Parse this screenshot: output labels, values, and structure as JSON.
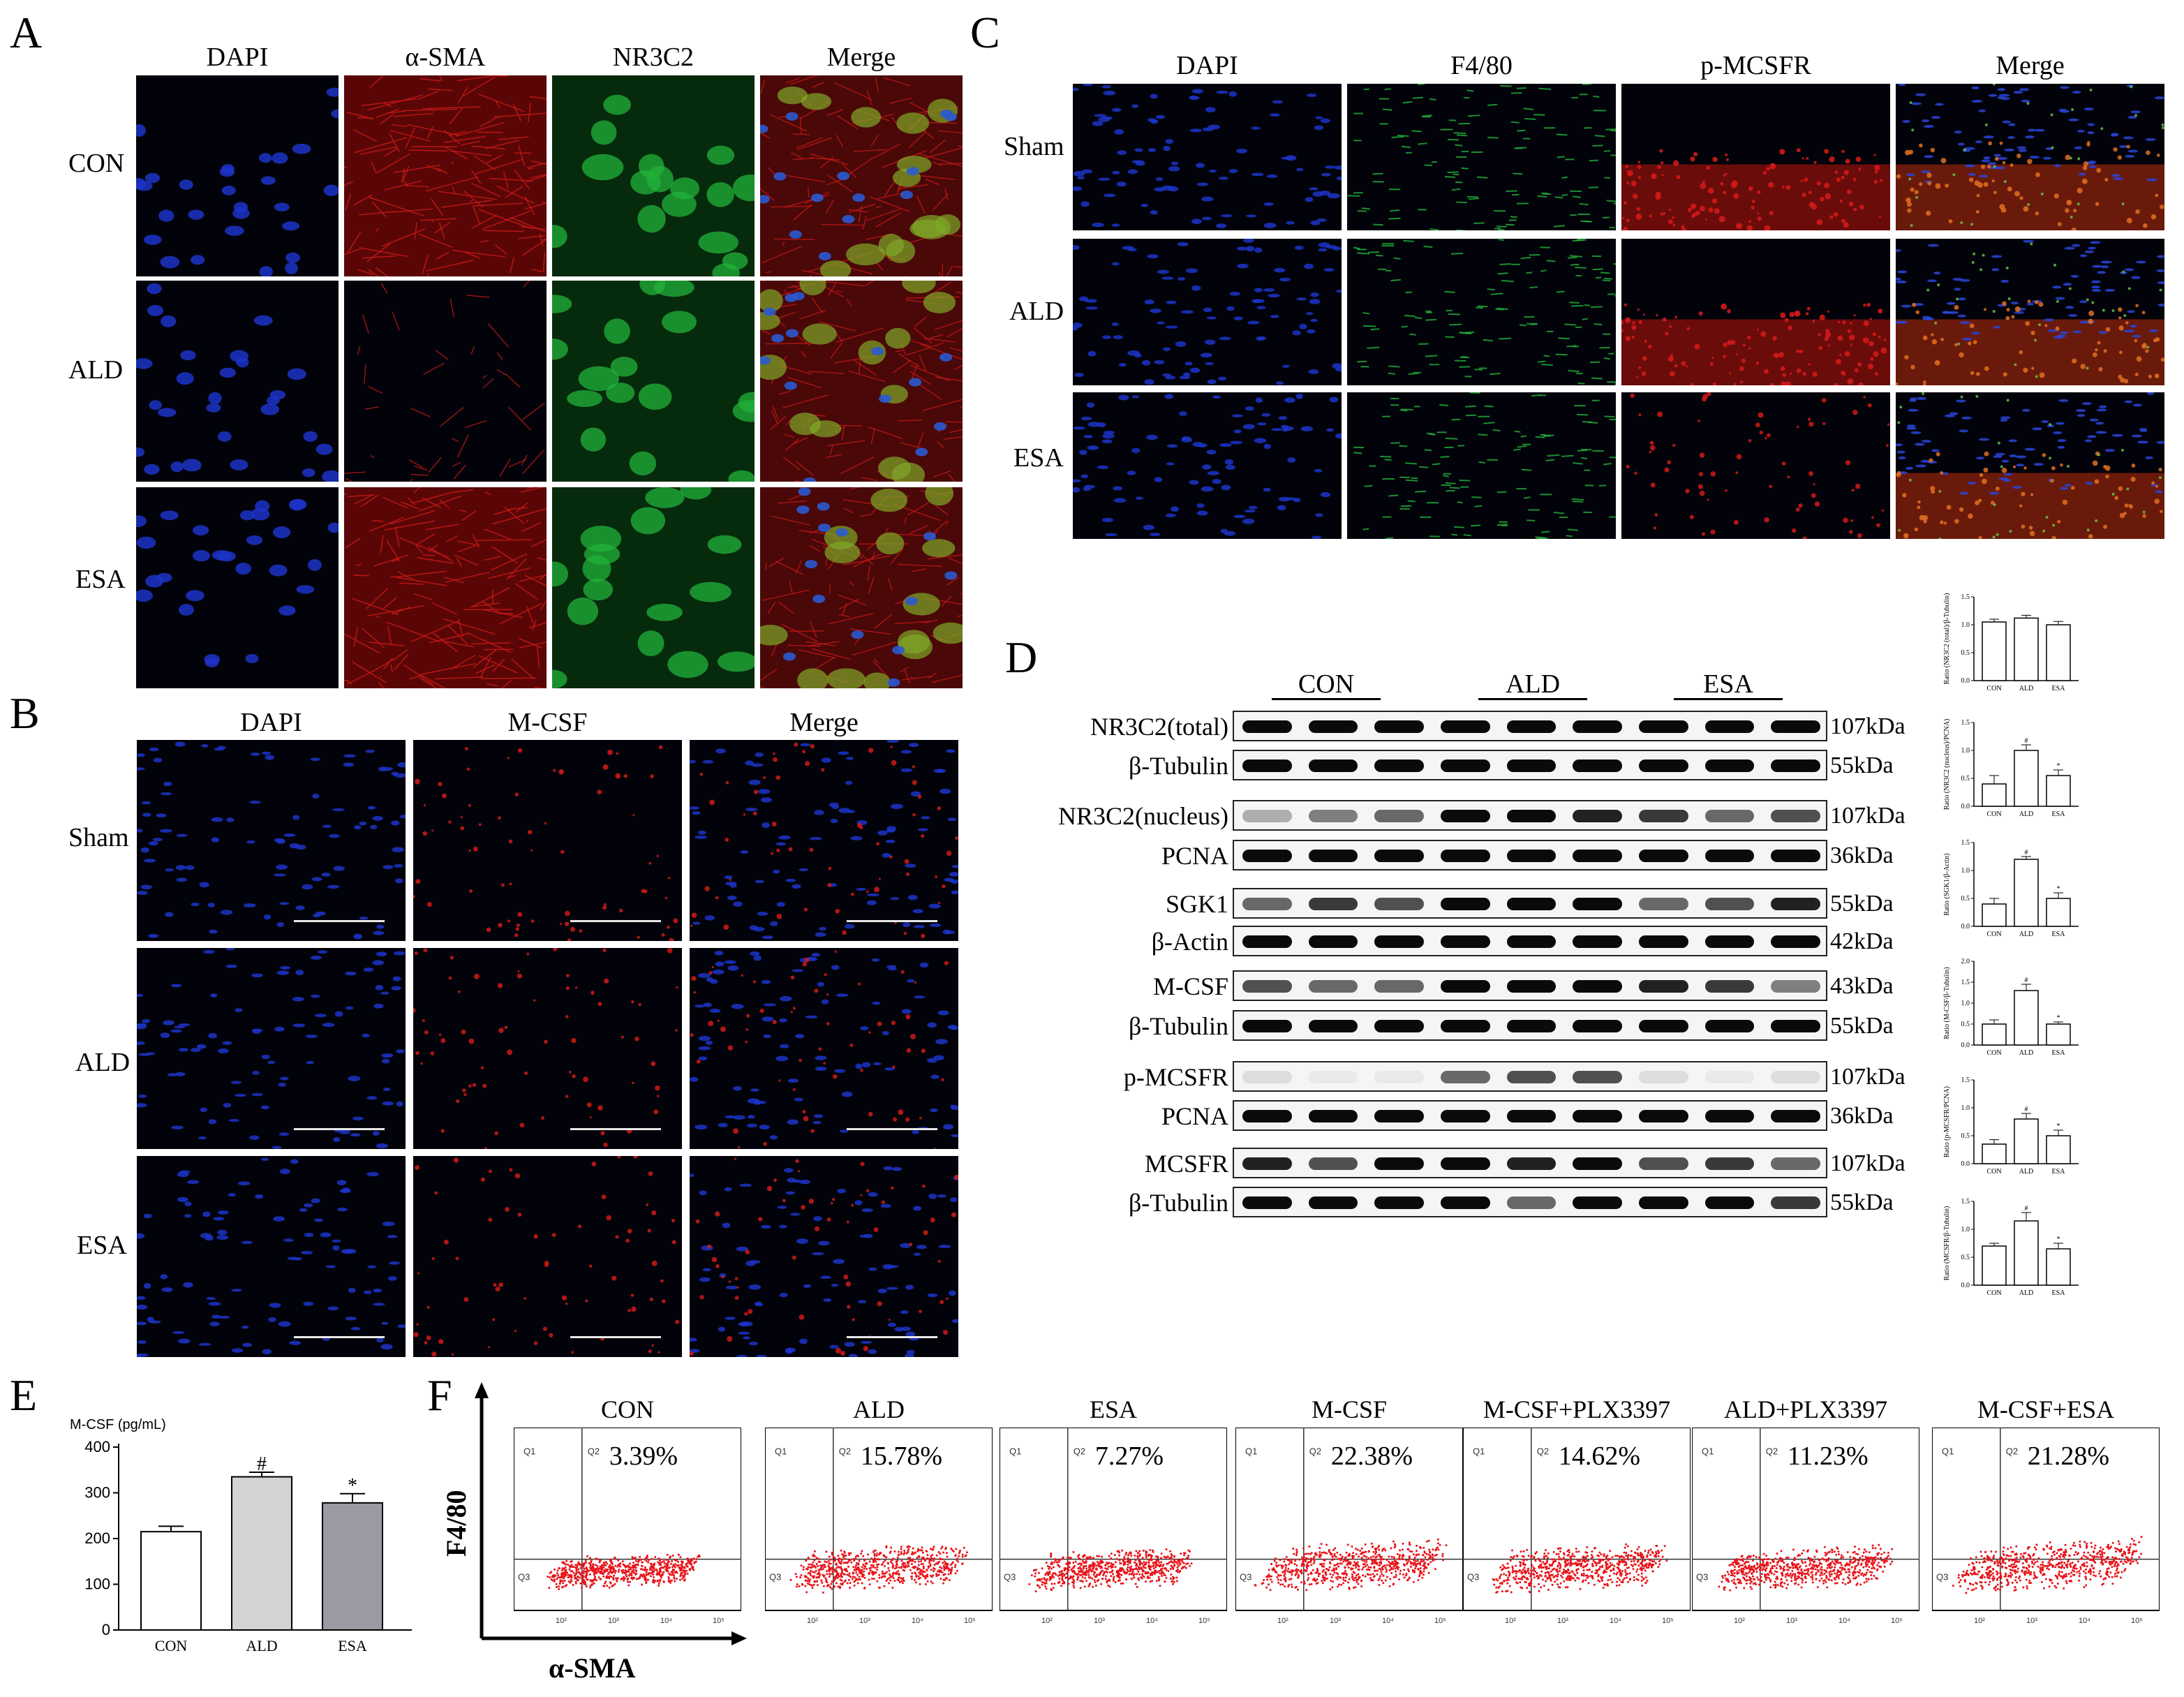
{
  "panel_letters": {
    "A": "A",
    "B": "B",
    "C": "C",
    "D": "D",
    "E": "E",
    "F": "F"
  },
  "panelA": {
    "columns": [
      "DAPI",
      "α-SMA",
      "NR3C2",
      "Merge"
    ],
    "rows": [
      "CON",
      "ALD",
      "ESA"
    ],
    "colors": {
      "dapi": "#1a2aa8",
      "red": "#c0141a",
      "green": "#1f9e3a",
      "bg": "#03040e"
    }
  },
  "panelB": {
    "columns": [
      "DAPI",
      "M-CSF",
      "Merge"
    ],
    "rows": [
      "Sham",
      "ALD",
      "ESA"
    ]
  },
  "panelC": {
    "columns": [
      "DAPI",
      "F4/80",
      "p-MCSFR",
      "Merge"
    ],
    "rows": [
      "Sham",
      "ALD",
      "ESA"
    ]
  },
  "panelD": {
    "groups": [
      "CON",
      "ALD",
      "ESA"
    ],
    "blots": [
      {
        "name": "NR3C2(total)",
        "kda": "107kDa"
      },
      {
        "name": "β-Tubulin",
        "kda": "55kDa"
      },
      {
        "name": "NR3C2(nucleus)",
        "kda": "107kDa"
      },
      {
        "name": "PCNA",
        "kda": "36kDa"
      },
      {
        "name": "SGK1",
        "kda": "55kDa"
      },
      {
        "name": "β-Actin",
        "kda": "42kDa"
      },
      {
        "name": "M-CSF",
        "kda": "43kDa"
      },
      {
        "name": "β-Tubulin",
        "kda": "55kDa"
      },
      {
        "name": "p-MCSFR",
        "kda": "107kDa"
      },
      {
        "name": "PCNA",
        "kda": "36kDa"
      },
      {
        "name": "MCSFR",
        "kda": "107kDa"
      },
      {
        "name": "β-Tubulin",
        "kda": "55kDa"
      }
    ],
    "minicharts": [
      {
        "ylabel": "Ratio (NR3C2 (total)/β-Tubulin)",
        "values": [
          1.05,
          1.12,
          1.0
        ],
        "err": [
          0.05,
          0.05,
          0.06
        ],
        "ymax": 1.5,
        "ticks": [
          "0.0",
          "0.5",
          "1.0",
          "1.5"
        ],
        "marks": [
          "",
          "",
          ""
        ]
      },
      {
        "ylabel": "Ratio (NR3C2 (nucleus)/PCNA)",
        "values": [
          0.4,
          1.0,
          0.55
        ],
        "err": [
          0.15,
          0.1,
          0.1
        ],
        "ymax": 1.5,
        "ticks": [
          "0.0",
          "0.5",
          "1.0",
          "1.5"
        ],
        "marks": [
          "",
          "#",
          "*"
        ]
      },
      {
        "ylabel": "Ratio (SGK1/β-Actin)",
        "values": [
          0.4,
          1.2,
          0.5
        ],
        "err": [
          0.1,
          0.05,
          0.1
        ],
        "ymax": 1.5,
        "ticks": [
          "0.0",
          "0.5",
          "1.0",
          "1.5"
        ],
        "marks": [
          "",
          "#",
          "*"
        ]
      },
      {
        "ylabel": "Ratio (M-CSF/β-Tubulin)",
        "values": [
          0.5,
          1.3,
          0.5
        ],
        "err": [
          0.1,
          0.15,
          0.05
        ],
        "ymax": 2.0,
        "ticks": [
          "0.0",
          "0.5",
          "1.0",
          "1.5",
          "2.0"
        ],
        "marks": [
          "",
          "#",
          "*"
        ]
      },
      {
        "ylabel": "Ratio (p-MCSFR/PCNA)",
        "values": [
          0.35,
          0.8,
          0.5
        ],
        "err": [
          0.08,
          0.1,
          0.1
        ],
        "ymax": 1.5,
        "ticks": [
          "0.0",
          "0.5",
          "1.0",
          "1.5"
        ],
        "marks": [
          "",
          "#",
          "*"
        ]
      },
      {
        "ylabel": "Ratio (MCSFR/β-Tubulin)",
        "values": [
          0.7,
          1.15,
          0.65
        ],
        "err": [
          0.05,
          0.15,
          0.1
        ],
        "ymax": 1.5,
        "ticks": [
          "0.0",
          "0.5",
          "1.0",
          "1.5"
        ],
        "marks": [
          "",
          "#",
          "*"
        ]
      }
    ],
    "mini_categories": [
      "CON",
      "ALD",
      "ESA"
    ]
  },
  "chart_data": {
    "type": "bar",
    "title": "",
    "ylabel": "M-CSF (pg/mL)",
    "xlabel": "",
    "categories": [
      "CON",
      "ALD",
      "ESA"
    ],
    "values": [
      215,
      335,
      278
    ],
    "errors": [
      12,
      10,
      20
    ],
    "significance": [
      "",
      "#",
      "*"
    ],
    "ylim": [
      0,
      400
    ],
    "yticks": [
      "0",
      "100",
      "200",
      "300",
      "400"
    ],
    "bar_colors": [
      "#ffffff",
      "#d3d3d3",
      "#9a9aa3"
    ]
  },
  "panelF": {
    "ylabel": "F4/80",
    "xlabel": "α-SMA",
    "plots": [
      {
        "title": "CON",
        "pct": "3.39%",
        "spread": 0.35
      },
      {
        "title": "ALD",
        "pct": "15.78%",
        "spread": 0.55
      },
      {
        "title": "ESA",
        "pct": "7.27%",
        "spread": 0.45
      },
      {
        "title": "M-CSF",
        "pct": "22.38%",
        "spread": 0.65
      },
      {
        "title": "M-CSF+PLX3397",
        "pct": "14.62%",
        "spread": 0.55
      },
      {
        "title": "ALD+PLX3397",
        "pct": "11.23%",
        "spread": 0.5
      },
      {
        "title": "M-CSF+ESA",
        "pct": "21.28%",
        "spread": 0.65
      }
    ],
    "quadrants": [
      "Q1",
      "Q2",
      "Q3"
    ],
    "dot_color": "#e8141a"
  }
}
